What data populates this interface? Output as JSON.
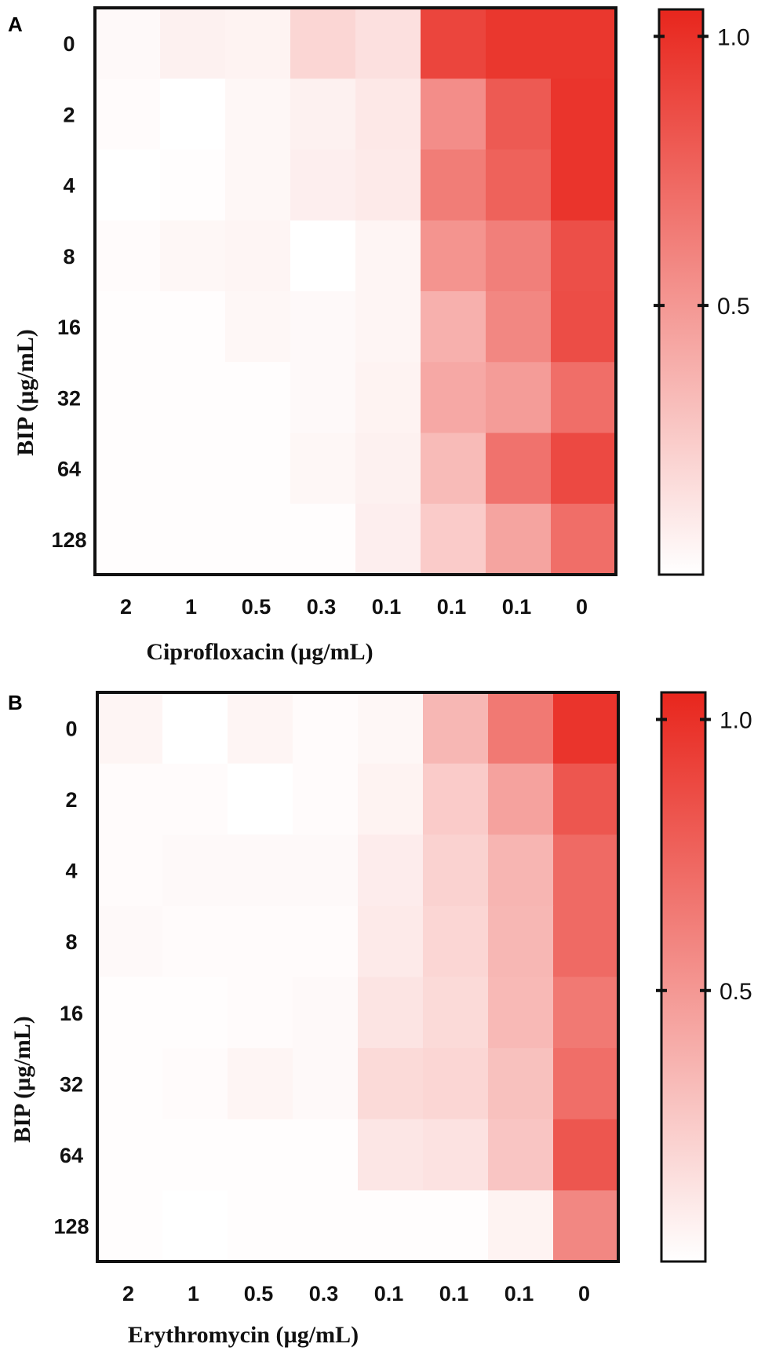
{
  "chart_data": [
    {
      "type": "heatmap",
      "panel_label": "A",
      "title": "",
      "xlabel": "Ciprofloxacin  (µg/mL)",
      "ylabel": "BIP (µg/mL)",
      "x_categories": [
        "2",
        "1",
        "0.5",
        "0.3",
        "0.1",
        "0.1",
        "0.1",
        "0"
      ],
      "y_categories": [
        "0",
        "2",
        "4",
        "8",
        "16",
        "32",
        "64",
        "128"
      ],
      "values": [
        [
          0.03,
          0.07,
          0.06,
          0.2,
          0.15,
          0.9,
          0.97,
          0.97
        ],
        [
          0.02,
          0.0,
          0.04,
          0.07,
          0.11,
          0.55,
          0.8,
          0.98
        ],
        [
          0.0,
          0.01,
          0.04,
          0.08,
          0.1,
          0.63,
          0.76,
          0.98
        ],
        [
          0.02,
          0.04,
          0.05,
          0.0,
          0.05,
          0.52,
          0.62,
          0.85
        ],
        [
          0.01,
          0.01,
          0.04,
          0.03,
          0.05,
          0.38,
          0.58,
          0.86
        ],
        [
          0.01,
          0.01,
          0.01,
          0.03,
          0.06,
          0.42,
          0.48,
          0.7
        ],
        [
          0.01,
          0.01,
          0.01,
          0.04,
          0.07,
          0.33,
          0.68,
          0.88
        ],
        [
          0.01,
          0.01,
          0.01,
          0.01,
          0.08,
          0.25,
          0.44,
          0.7
        ]
      ],
      "colorbar": {
        "min": 0,
        "max": 1.05,
        "ticks": [
          0.5,
          1.0
        ],
        "tick_labels": [
          "0.5",
          "1.0"
        ],
        "low_color": "#ffffff",
        "high_color": "#e8261d"
      }
    },
    {
      "type": "heatmap",
      "panel_label": "B",
      "title": "",
      "xlabel": "Erythromycin (µg/mL)",
      "ylabel": "BIP (µg/mL)",
      "x_categories": [
        "2",
        "1",
        "0.5",
        "0.3",
        "0.1",
        "0.1",
        "0.1",
        "0"
      ],
      "y_categories": [
        "0",
        "2",
        "4",
        "8",
        "16",
        "32",
        "64",
        "128"
      ],
      "values": [
        [
          0.05,
          0.0,
          0.05,
          0.02,
          0.04,
          0.35,
          0.65,
          0.98
        ],
        [
          0.02,
          0.02,
          0.0,
          0.02,
          0.06,
          0.25,
          0.45,
          0.82
        ],
        [
          0.02,
          0.03,
          0.03,
          0.03,
          0.09,
          0.22,
          0.36,
          0.72
        ],
        [
          0.03,
          0.02,
          0.02,
          0.02,
          0.1,
          0.2,
          0.35,
          0.72
        ],
        [
          0.01,
          0.01,
          0.02,
          0.03,
          0.13,
          0.18,
          0.34,
          0.65
        ],
        [
          0.01,
          0.02,
          0.05,
          0.03,
          0.18,
          0.2,
          0.3,
          0.7
        ],
        [
          0.01,
          0.01,
          0.01,
          0.01,
          0.12,
          0.14,
          0.28,
          0.82
        ],
        [
          0.01,
          0.0,
          0.01,
          0.01,
          0.01,
          0.01,
          0.06,
          0.58
        ]
      ],
      "colorbar": {
        "min": 0,
        "max": 1.05,
        "ticks": [
          0.5,
          1.0
        ],
        "tick_labels": [
          "0.5",
          "1.0"
        ],
        "low_color": "#ffffff",
        "high_color": "#e8261d"
      }
    }
  ]
}
